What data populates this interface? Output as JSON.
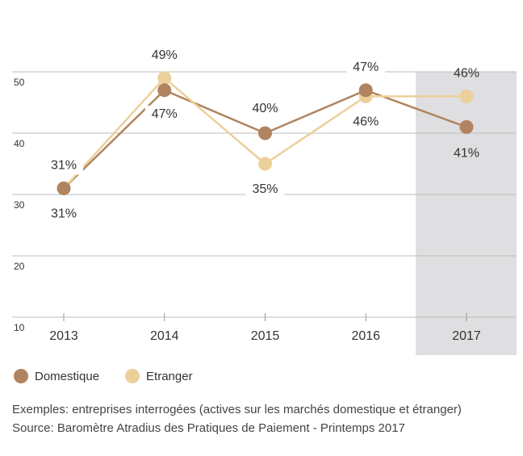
{
  "chart_data": {
    "type": "line",
    "categories": [
      "2013",
      "2014",
      "2015",
      "2016",
      "2017"
    ],
    "series": [
      {
        "name": "Domestique",
        "color": "#b08460",
        "values": [
          31,
          47,
          40,
          47,
          41
        ],
        "value_labels": [
          "31%",
          "47%",
          "40%",
          "47%",
          "41%"
        ]
      },
      {
        "name": "Etranger",
        "color": "#ecd09a",
        "values": [
          31,
          49,
          35,
          46,
          46
        ],
        "value_labels": [
          "31%",
          "49%",
          "35%",
          "46%",
          "46%"
        ]
      }
    ],
    "ylim": [
      10,
      50
    ],
    "yticks": [
      10,
      20,
      30,
      40,
      50
    ],
    "grid": true,
    "notes": [
      "Exemples: entreprises interrogées (actives sur les marchés domestique et étranger)",
      "Source: Baromètre Atradius des Pratiques de Paiement - Printemps 2017"
    ]
  }
}
